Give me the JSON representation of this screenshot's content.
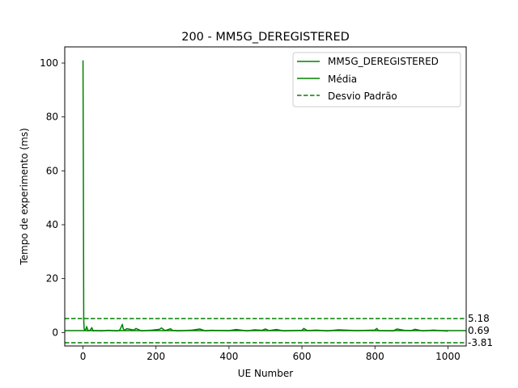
{
  "chart_data": {
    "type": "line",
    "title": "200 - MM5G_DEREGISTERED",
    "xlabel": "UE Number",
    "ylabel": "Tempo de experimento (ms)",
    "xlim": [
      -50,
      1050
    ],
    "ylim": [
      -5,
      106
    ],
    "xticks": [
      0,
      200,
      400,
      600,
      800,
      1000
    ],
    "yticks": [
      0,
      20,
      40,
      60,
      80,
      100
    ],
    "grid": false,
    "legend_position": "top-right",
    "color": "#008000",
    "series": [
      {
        "name": "MM5G_DEREGISTERED",
        "style": "solid",
        "x": [
          0,
          1,
          2,
          3,
          5,
          8,
          10,
          14,
          20,
          24,
          28,
          35,
          50,
          70,
          90,
          100,
          108,
          110,
          113,
          120,
          140,
          145,
          160,
          190,
          210,
          215,
          225,
          240,
          245,
          260,
          300,
          320,
          335,
          350,
          400,
          420,
          450,
          470,
          490,
          500,
          510,
          530,
          550,
          600,
          605,
          615,
          640,
          670,
          700,
          750,
          800,
          805,
          810,
          850,
          860,
          880,
          900,
          910,
          930,
          960,
          1000
        ],
        "y": [
          101,
          60,
          5,
          1.5,
          0.8,
          1.2,
          2.2,
          0.6,
          0.9,
          1.8,
          0.6,
          0.7,
          0.6,
          0.8,
          0.6,
          0.7,
          3.0,
          1.5,
          0.8,
          1.4,
          0.9,
          1.5,
          0.6,
          0.9,
          1.2,
          1.7,
          0.7,
          1.4,
          0.8,
          0.6,
          0.9,
          1.3,
          0.6,
          0.8,
          0.7,
          1.1,
          0.6,
          1.0,
          0.8,
          1.3,
          0.7,
          1.1,
          0.6,
          0.8,
          1.5,
          0.7,
          0.9,
          0.6,
          1.0,
          0.7,
          0.9,
          1.5,
          0.7,
          0.6,
          1.3,
          0.8,
          0.7,
          1.2,
          0.6,
          0.9,
          0.5
        ]
      },
      {
        "name": "Média",
        "style": "solid",
        "value": 0.69
      },
      {
        "name": "Desvio Padrão",
        "style": "dashed",
        "upper": 5.18,
        "lower": -3.81
      }
    ],
    "hline_labels": [
      "5.18",
      "0.69",
      "-3.81"
    ]
  }
}
